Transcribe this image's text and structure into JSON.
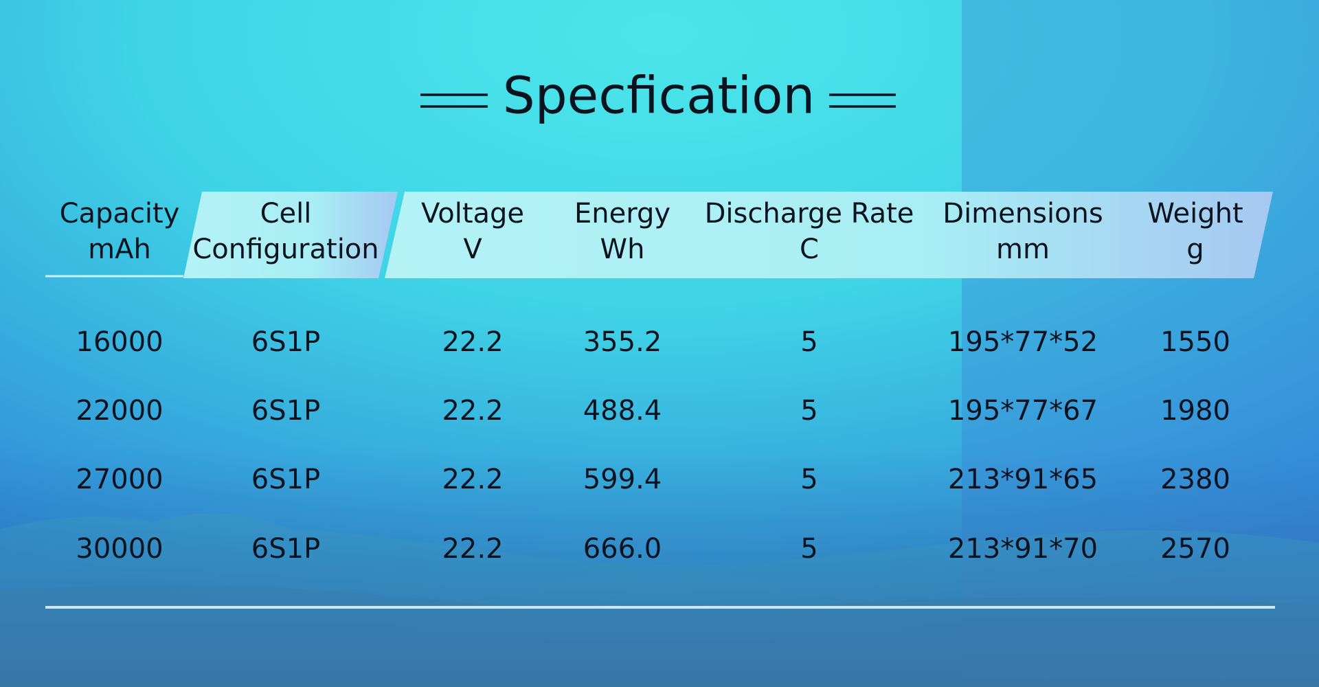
{
  "header": {
    "title": "Specfication"
  },
  "table": {
    "columns": [
      [
        "Capacity",
        "mAh"
      ],
      [
        "Cell",
        "Configuration"
      ],
      [
        "Voltage",
        "V"
      ],
      [
        "Energy",
        "Wh"
      ],
      [
        "Discharge Rate",
        "C"
      ],
      [
        "Dimensions",
        "mm"
      ],
      [
        "Weight",
        "g"
      ]
    ],
    "rows": [
      [
        "16000",
        "6S1P",
        "22.2",
        "355.2",
        "5",
        "195*77*52",
        "1550"
      ],
      [
        "22000",
        "6S1P",
        "22.2",
        "488.4",
        "5",
        "195*77*67",
        "1980"
      ],
      [
        "27000",
        "6S1P",
        "22.2",
        "599.4",
        "5",
        "213*91*65",
        "2380"
      ],
      [
        "30000",
        "6S1P",
        "22.2",
        "666.0",
        "5",
        "213*91*70",
        "2570"
      ]
    ]
  }
}
